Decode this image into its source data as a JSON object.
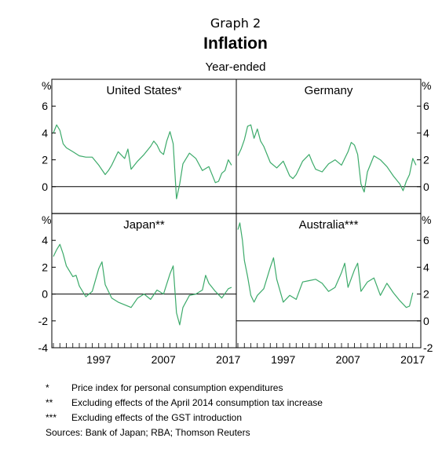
{
  "header": {
    "graph_number": "Graph 2",
    "title": "Inflation",
    "subtitle": "Year-ended"
  },
  "colors": {
    "series": "#3caa6a",
    "axis": "#000000"
  },
  "chart_data": {
    "type": "line",
    "grid": false,
    "x_ticks": [
      "1997",
      "2007",
      "2017"
    ],
    "xlim": [
      1990,
      2018
    ],
    "panels": [
      {
        "title": "United States*",
        "y_unit": "%",
        "unit_side": "left",
        "ylim": [
          -2,
          8
        ],
        "yticks": [
          "6",
          "4",
          "2",
          "0"
        ],
        "x": [
          1990,
          1990.5,
          1991,
          1991.5,
          1992,
          1993,
          1994,
          1995,
          1996,
          1997,
          1998,
          1998.5,
          1999,
          2000,
          2001,
          2001.5,
          2002,
          2003,
          2004,
          2005,
          2005.5,
          2006,
          2006.5,
          2007,
          2007.5,
          2008,
          2008.5,
          2009,
          2009.5,
          2010,
          2011,
          2012,
          2013,
          2014,
          2015,
          2015.5,
          2016,
          2016.5,
          2017,
          2017.5
        ],
        "y": [
          4.0,
          4.6,
          4.2,
          3.2,
          2.9,
          2.6,
          2.3,
          2.2,
          2.2,
          1.6,
          0.9,
          1.2,
          1.6,
          2.6,
          2.1,
          2.8,
          1.3,
          1.9,
          2.4,
          3.0,
          3.4,
          3.1,
          2.6,
          2.4,
          3.4,
          4.1,
          3.2,
          -0.9,
          0.2,
          1.7,
          2.5,
          2.1,
          1.2,
          1.5,
          0.3,
          0.4,
          1.0,
          1.2,
          2.0,
          1.6
        ]
      },
      {
        "title": "Germany",
        "y_unit": "%",
        "unit_side": "right",
        "ylim": [
          -2,
          8
        ],
        "yticks": [
          "6",
          "4",
          "2",
          "0"
        ],
        "x": [
          1990,
          1990.5,
          1991,
          1991.5,
          1992,
          1992.5,
          1993,
          1993.5,
          1994,
          1995,
          1996,
          1997,
          1998,
          1998.5,
          1999,
          2000,
          2001,
          2001.5,
          2002,
          2003,
          2004,
          2005,
          2006,
          2007,
          2007.5,
          2008,
          2008.5,
          2009,
          2009.5,
          2010,
          2011,
          2012,
          2013,
          2014,
          2015,
          2015.5,
          2016,
          2016.5,
          2017,
          2017.5
        ],
        "y": [
          2.3,
          2.8,
          3.5,
          4.5,
          4.6,
          3.6,
          4.3,
          3.4,
          3.0,
          1.8,
          1.4,
          1.9,
          0.8,
          0.6,
          0.9,
          1.9,
          2.4,
          1.8,
          1.3,
          1.1,
          1.7,
          2.0,
          1.6,
          2.6,
          3.3,
          3.1,
          2.4,
          0.2,
          -0.4,
          1.1,
          2.3,
          2.0,
          1.5,
          0.8,
          0.2,
          -0.3,
          0.4,
          0.9,
          2.1,
          1.6
        ]
      },
      {
        "title": "Japan**",
        "y_unit": "%",
        "unit_side": "left",
        "ylim": [
          -4,
          6
        ],
        "yticks": [
          "4",
          "2",
          "0",
          "-2",
          "-4"
        ],
        "x": [
          1990,
          1990.5,
          1991,
          1991.5,
          1992,
          1993,
          1993.5,
          1994,
          1995,
          1996,
          1997,
          1997.5,
          1998,
          1999,
          2000,
          2001,
          2002,
          2003,
          2004,
          2005,
          2006,
          2007,
          2008,
          2008.5,
          2009,
          2009.5,
          2010,
          2011,
          2012,
          2013,
          2013.5,
          2014,
          2015,
          2016,
          2017,
          2017.5
        ],
        "y": [
          2.8,
          3.3,
          3.7,
          3.0,
          2.1,
          1.3,
          1.4,
          0.6,
          -0.2,
          0.2,
          1.9,
          2.4,
          0.7,
          -0.3,
          -0.6,
          -0.8,
          -1.0,
          -0.3,
          0.0,
          -0.4,
          0.3,
          0.0,
          1.5,
          2.1,
          -1.4,
          -2.3,
          -1.0,
          -0.1,
          0.0,
          0.3,
          1.4,
          0.8,
          0.2,
          -0.3,
          0.4,
          0.5
        ]
      },
      {
        "title": "Australia***",
        "y_unit": "%",
        "unit_side": "right",
        "ylim": [
          -2,
          8
        ],
        "yticks": [
          "6",
          "4",
          "2",
          "0",
          "-2"
        ],
        "x": [
          1990,
          1990.3,
          1990.7,
          1991,
          1991.5,
          1992,
          1992.5,
          1993,
          1994,
          1995,
          1995.5,
          1996,
          1997,
          1998,
          1999,
          2000,
          2001,
          2002,
          2003,
          2004,
          2005,
          2006,
          2006.5,
          2007,
          2008,
          2008.5,
          2009,
          2010,
          2011,
          2012,
          2013,
          2014,
          2015,
          2016,
          2016.5,
          2017
        ],
        "y": [
          6.8,
          7.3,
          6.0,
          4.5,
          3.3,
          1.9,
          1.4,
          1.9,
          2.4,
          4.0,
          4.7,
          3.1,
          1.4,
          1.9,
          1.6,
          2.9,
          3.0,
          3.1,
          2.8,
          2.2,
          2.5,
          3.6,
          4.3,
          2.5,
          3.8,
          4.3,
          2.2,
          2.9,
          3.2,
          1.9,
          2.8,
          2.1,
          1.5,
          1.0,
          1.1,
          2.1
        ]
      }
    ]
  },
  "notes": [
    {
      "mark": "*",
      "text": "Price index for personal consumption expenditures"
    },
    {
      "mark": "**",
      "text": "Excluding effects of the April 2014 consumption tax increase"
    },
    {
      "mark": "***",
      "text": "Excluding effects of the GST introduction"
    }
  ],
  "sources": "Sources:   Bank of Japan; RBA; Thomson Reuters"
}
